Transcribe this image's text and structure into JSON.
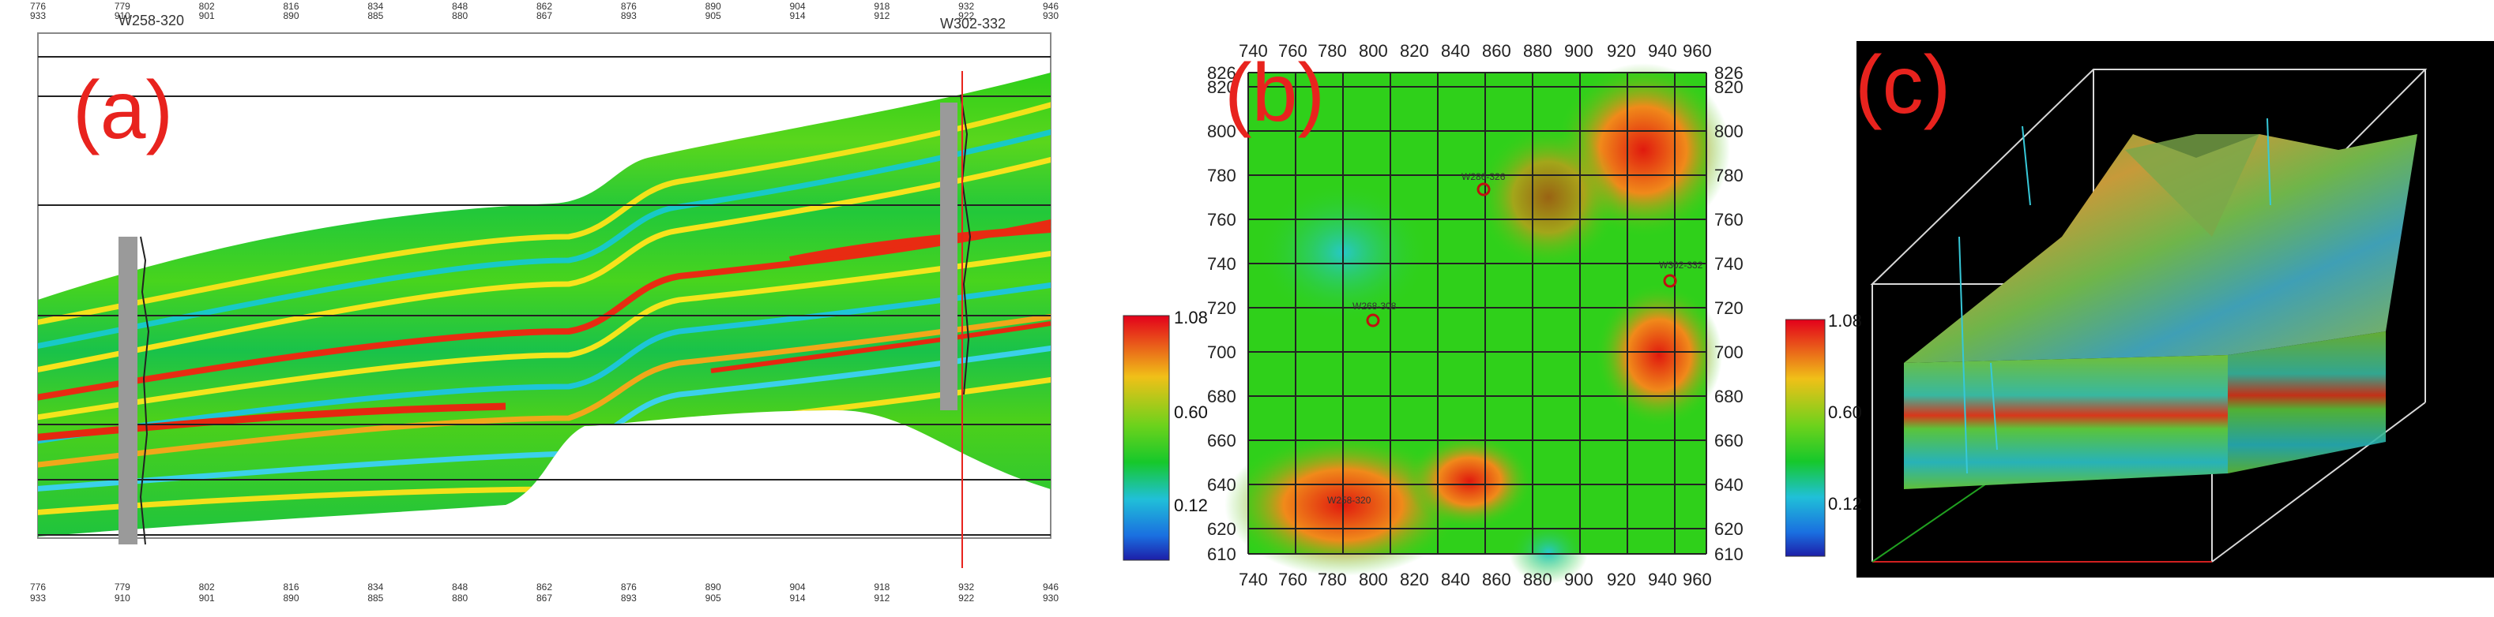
{
  "panel_a": {
    "label": "(a)",
    "well_left": "W258-320",
    "well_right": "W302-332",
    "top_ticks_1": [
      "776",
      "779",
      "802",
      "816",
      "834",
      "848",
      "862",
      "876",
      "890",
      "904",
      "918",
      "932",
      "946"
    ],
    "top_ticks_2": [
      "933",
      "910",
      "901",
      "890",
      "885",
      "880",
      "867",
      "893",
      "905",
      "914",
      "912",
      "922",
      "930"
    ]
  },
  "panel_b": {
    "label": "(b)",
    "x_ticks": [
      "740",
      "760",
      "780",
      "800",
      "820",
      "840",
      "860",
      "880",
      "900",
      "920",
      "940",
      "960"
    ],
    "y_ticks": [
      "826",
      "820",
      "800",
      "780",
      "760",
      "740",
      "720",
      "700",
      "680",
      "660",
      "640",
      "620",
      "610"
    ],
    "well_labels": [
      "W286-326",
      "W268-308",
      "W302-332",
      "W258-320"
    ],
    "colorbar": {
      "max": "1.08",
      "mid": "0.60",
      "min": "0.12"
    }
  },
  "panel_c": {
    "label": "(c)",
    "colorbar": {
      "max": "1.08",
      "mid": "0.60",
      "min": "0.12"
    }
  }
}
